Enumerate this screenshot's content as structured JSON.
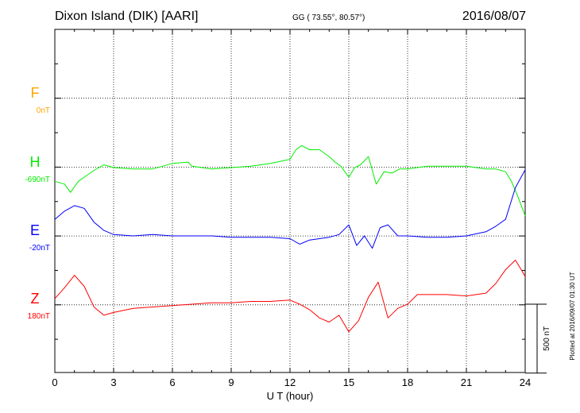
{
  "header": {
    "station": "Dixon Island (DIK)  [AARI]",
    "coords": "GG ( 73.55°,  80.57°)",
    "date": "2016/08/07"
  },
  "side_note": "Plotted at 2016/09/07 01:30 UT",
  "scale_label": "500 nT",
  "chart_data": {
    "type": "line",
    "xlabel": "U T (hour)",
    "xlim": [
      0,
      24
    ],
    "xticks": [
      0,
      3,
      6,
      9,
      12,
      15,
      18,
      21,
      24
    ],
    "y_units_per_division": 500,
    "grid": true,
    "series": [
      {
        "name": "F",
        "baseline_label": "0nT",
        "color": "#ffa500",
        "x": [],
        "y": []
      },
      {
        "name": "H",
        "baseline_label": "-690nT",
        "color": "#00ee00",
        "x": [
          0,
          0.5,
          0.8,
          1.2,
          1.6,
          2,
          2.5,
          3,
          4,
          5,
          6,
          6.8,
          7,
          8,
          9,
          10,
          11,
          12,
          12.3,
          12.6,
          13,
          13.5,
          14,
          14.3,
          14.6,
          15,
          15.3,
          15.6,
          16,
          16.4,
          16.8,
          17.2,
          17.6,
          18,
          19,
          20,
          21,
          22,
          22.5,
          23,
          23.3,
          23.6,
          24
        ],
        "y": [
          -100,
          -120,
          -180,
          -100,
          -60,
          -20,
          20,
          0,
          -10,
          -10,
          30,
          40,
          10,
          -10,
          0,
          10,
          30,
          60,
          130,
          160,
          130,
          130,
          80,
          40,
          10,
          -70,
          0,
          20,
          80,
          -120,
          -30,
          -40,
          -10,
          -10,
          10,
          10,
          10,
          -10,
          -10,
          -30,
          -100,
          -200,
          -350
        ]
      },
      {
        "name": "E",
        "baseline_label": "-20nT",
        "color": "#0000ff",
        "x": [
          0,
          0.5,
          1,
          1.5,
          2,
          2.5,
          3,
          4,
          5,
          6,
          7,
          8,
          9,
          10,
          11,
          12,
          12.5,
          13,
          13.5,
          14,
          14.5,
          15,
          15.4,
          15.8,
          16.2,
          16.6,
          17,
          17.5,
          18,
          19,
          20,
          21,
          22,
          22.5,
          23,
          23.5,
          24
        ],
        "y": [
          120,
          180,
          220,
          200,
          100,
          40,
          10,
          0,
          10,
          0,
          0,
          0,
          -10,
          -10,
          -10,
          -20,
          -60,
          -30,
          -20,
          -10,
          10,
          80,
          -70,
          0,
          -90,
          60,
          80,
          0,
          0,
          -10,
          -10,
          0,
          30,
          70,
          120,
          350,
          480
        ]
      },
      {
        "name": "Z",
        "baseline_label": "180nT",
        "color": "#ff0000",
        "x": [
          0,
          0.5,
          1,
          1.5,
          2,
          2.5,
          3,
          4,
          5,
          6,
          7,
          8,
          9,
          10,
          11,
          12,
          12.5,
          13,
          13.5,
          14,
          14.5,
          15,
          15.5,
          16,
          16.5,
          17,
          17.5,
          18,
          18.5,
          19,
          20,
          21,
          22,
          22.5,
          23,
          23.5,
          23.8,
          24
        ],
        "y": [
          40,
          120,
          210,
          130,
          -20,
          -80,
          -60,
          -30,
          -20,
          -10,
          0,
          10,
          10,
          20,
          20,
          30,
          0,
          -40,
          -100,
          -130,
          -80,
          -200,
          -120,
          50,
          160,
          -100,
          -30,
          0,
          70,
          70,
          70,
          60,
          80,
          150,
          250,
          320,
          250,
          200
        ]
      }
    ]
  }
}
